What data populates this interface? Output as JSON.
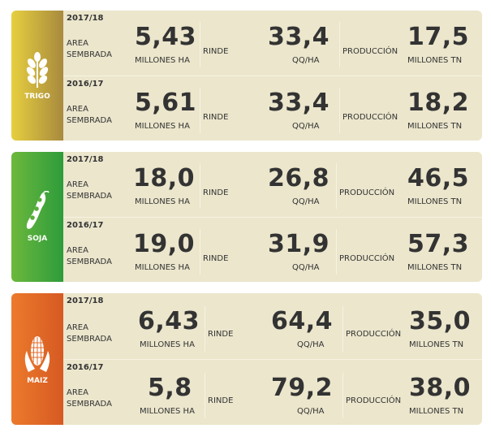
{
  "crops": [
    {
      "name": "TRIGO",
      "icon": "wheat-icon",
      "colors": [
        "#e6cf3f",
        "#a88a3e"
      ],
      "rows": [
        {
          "year": "2017/18",
          "area_label": [
            "AREA",
            "SEMBRADA"
          ],
          "area_value": "5,43",
          "area_unit": "MILLONES HA",
          "rinde_label": "RINDE",
          "rinde_value": "33,4",
          "rinde_unit": "QQ/HA",
          "prod_label": "PRODUCCIÓN",
          "prod_value": "17,5",
          "prod_unit": "MILLONES TN"
        },
        {
          "year": "2016/17",
          "area_label": [
            "AREA",
            "SEMBRADA"
          ],
          "area_value": "5,61",
          "area_unit": "MILLONES HA",
          "rinde_label": "RINDE",
          "rinde_value": "33,4",
          "rinde_unit": "QQ/HA",
          "prod_label": "PRODUCCIÓN",
          "prod_value": "18,2",
          "prod_unit": "MILLONES TN"
        }
      ]
    },
    {
      "name": "SOJA",
      "icon": "soybean-icon",
      "colors": [
        "#6cb83c",
        "#2e9c3b"
      ],
      "rows": [
        {
          "year": "2017/18",
          "area_label": [
            "AREA",
            "SEMBRADA"
          ],
          "area_value": "18,0",
          "area_unit": "MILLONES HA",
          "rinde_label": "RINDE",
          "rinde_value": "26,8",
          "rinde_unit": "QQ/HA",
          "prod_label": "PRODUCCIÓN",
          "prod_value": "46,5",
          "prod_unit": "MILLONES TN"
        },
        {
          "year": "2016/17",
          "area_label": [
            "AREA",
            "SEMBRADA"
          ],
          "area_value": "19,0",
          "area_unit": "MILLONES HA",
          "rinde_label": "RINDE",
          "rinde_value": "31,9",
          "rinde_unit": "QQ/HA",
          "prod_label": "PRODUCCIÓN",
          "prod_value": "57,3",
          "prod_unit": "MILLONES TN"
        }
      ]
    },
    {
      "name": "MAIZ",
      "icon": "corn-icon",
      "colors": [
        "#ec7a2c",
        "#d65a22"
      ],
      "rows": [
        {
          "year": "2017/18",
          "area_label": [
            "AREA",
            "SEMBRADA"
          ],
          "area_value": "6,43",
          "area_unit": "MILLONES HA",
          "rinde_label": "RINDE",
          "rinde_value": "64,4",
          "rinde_unit": "QQ/HA",
          "prod_label": "PRODUCCIÓN",
          "prod_value": "35,0",
          "prod_unit": "MILLONES TN"
        },
        {
          "year": "2016/17",
          "area_label": [
            "AREA",
            "SEMBRADA"
          ],
          "area_value": "5,8",
          "area_unit": "MILLONES HA",
          "rinde_label": "RINDE",
          "rinde_value": "79,2",
          "rinde_unit": "QQ/HA",
          "prod_label": "PRODUCCIÓN",
          "prod_value": "38,0",
          "prod_unit": "MILLONES TN"
        }
      ]
    }
  ]
}
